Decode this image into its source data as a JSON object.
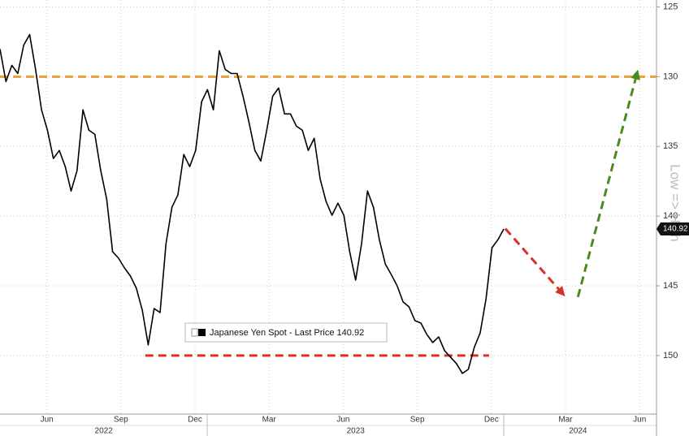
{
  "chart_data": {
    "type": "line",
    "x": [
      2022.3,
      2022.32,
      2022.34,
      2022.36,
      2022.38,
      2022.4,
      2022.42,
      2022.44,
      2022.46,
      2022.48,
      2022.5,
      2022.52,
      2022.54,
      2022.56,
      2022.58,
      2022.6,
      2022.62,
      2022.64,
      2022.66,
      2022.68,
      2022.7,
      2022.72,
      2022.74,
      2022.76,
      2022.78,
      2022.8,
      2022.82,
      2022.84,
      2022.86,
      2022.88,
      2022.9,
      2022.92,
      2022.94,
      2022.96,
      2022.98,
      2023.0,
      2023.02,
      2023.04,
      2023.06,
      2023.08,
      2023.1,
      2023.12,
      2023.14,
      2023.16,
      2023.18,
      2023.2,
      2023.22,
      2023.24,
      2023.26,
      2023.28,
      2023.3,
      2023.32,
      2023.34,
      2023.36,
      2023.38,
      2023.4,
      2023.42,
      2023.44,
      2023.46,
      2023.48,
      2023.5,
      2023.52,
      2023.54,
      2023.56,
      2023.58,
      2023.6,
      2023.62,
      2023.64,
      2023.66,
      2023.68,
      2023.7,
      2023.72,
      2023.74,
      2023.76,
      2023.78,
      2023.8,
      2023.82,
      2023.84,
      2023.86,
      2023.88,
      2023.9,
      2023.92,
      2023.94,
      2023.96,
      2023.98,
      2024.0
    ],
    "series": [
      {
        "name": "Japanese Yen Spot - Last Price 140.92",
        "color": "#000000",
        "values": [
          128.02,
          130.35,
          129.19,
          129.77,
          127.73,
          126.98,
          129.48,
          132.38,
          133.84,
          135.87,
          135.29,
          136.45,
          138.2,
          136.74,
          132.38,
          133.84,
          134.13,
          136.74,
          138.78,
          142.56,
          143.02,
          143.72,
          144.3,
          145.17,
          146.74,
          149.24,
          146.63,
          146.92,
          141.98,
          139.36,
          138.49,
          135.58,
          136.45,
          135.29,
          131.8,
          130.93,
          132.38,
          128.14,
          129.48,
          129.77,
          129.77,
          131.4,
          133.26,
          135.29,
          136.05,
          133.84,
          131.4,
          130.81,
          132.67,
          132.67,
          133.55,
          133.84,
          135.29,
          134.42,
          137.33,
          138.95,
          139.94,
          139.07,
          139.94,
          142.56,
          144.59,
          141.98,
          138.2,
          139.36,
          141.69,
          143.43,
          144.19,
          145.0,
          146.16,
          146.51,
          147.5,
          147.67,
          148.49,
          149.07,
          148.66,
          149.65,
          150.12,
          150.58,
          151.28,
          150.99,
          149.42,
          148.37,
          145.93,
          142.27,
          141.69,
          140.92
        ]
      }
    ],
    "last_value": 140.92,
    "y_label": "Low => High",
    "xlim": [
      2022.3,
      2024.515
    ],
    "ylim": [
      154.2,
      124.5
    ],
    "yticks": [
      125,
      130,
      135,
      140,
      145,
      150
    ],
    "xticks": [
      {
        "value": 2022.458,
        "label": "Jun"
      },
      {
        "value": 2022.708,
        "label": "Sep"
      },
      {
        "value": 2022.958,
        "label": "Dec"
      },
      {
        "value": 2023.208,
        "label": "Mar"
      },
      {
        "value": 2023.458,
        "label": "Jun"
      },
      {
        "value": 2023.708,
        "label": "Sep"
      },
      {
        "value": 2023.958,
        "label": "Dec"
      },
      {
        "value": 2024.208,
        "label": "Mar"
      },
      {
        "value": 2024.458,
        "label": "Jun"
      }
    ],
    "year_ticks": [
      {
        "value": 2022.65,
        "label": "2022"
      },
      {
        "value": 2023.5,
        "label": "2023"
      },
      {
        "value": 2024.25,
        "label": "2024"
      }
    ],
    "grid": true,
    "annotations": [
      {
        "color": "#e8a33d",
        "x": [
          2022.3,
          2024.515
        ],
        "y": [
          130,
          130
        ],
        "arrow": false
      },
      {
        "color": "#d9302c",
        "x": [
          2022.79,
          2023.95
        ],
        "y": [
          150,
          150
        ],
        "arrow": false
      },
      {
        "color": "#d9302c",
        "x": [
          2024.005,
          2024.2
        ],
        "y": [
          140.9,
          145.6
        ],
        "arrow": true
      },
      {
        "color": "#4a8c1c",
        "x": [
          2024.25,
          2024.45
        ],
        "y": [
          145.8,
          129.7
        ],
        "arrow": true
      }
    ]
  }
}
